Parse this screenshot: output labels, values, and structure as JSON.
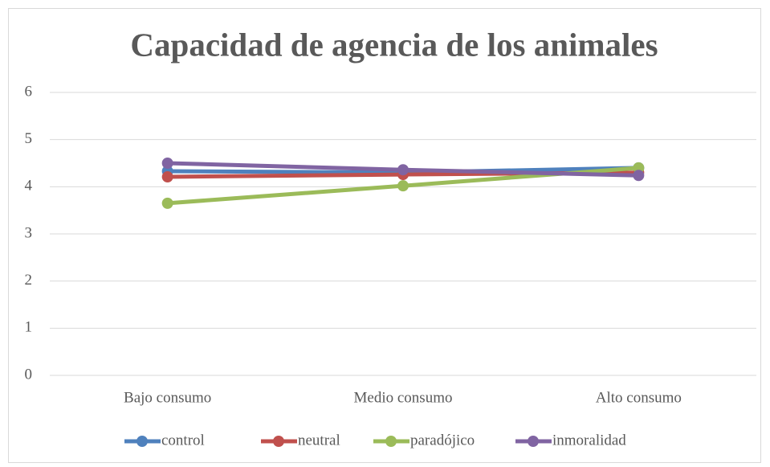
{
  "chart_data": {
    "type": "line",
    "title": "Capacidad de agencia de los animales",
    "categories": [
      "Bajo consumo",
      "Medio consumo",
      "Alto consumo"
    ],
    "series": [
      {
        "name": "control",
        "color": "#4f81bd",
        "values": [
          4.33,
          4.3,
          4.4
        ]
      },
      {
        "name": "neutral",
        "color": "#c0504d",
        "values": [
          4.21,
          4.26,
          4.3
        ]
      },
      {
        "name": "paradójico",
        "color": "#9bbb59",
        "values": [
          3.65,
          4.02,
          4.4
        ]
      },
      {
        "name": "inmoralidad",
        "color": "#8064a2",
        "values": [
          4.5,
          4.36,
          4.24
        ]
      }
    ],
    "ylim": [
      0,
      6
    ],
    "yticks": [
      0,
      1,
      2,
      3,
      4,
      5,
      6
    ],
    "grid": true,
    "legend": "bottom"
  }
}
